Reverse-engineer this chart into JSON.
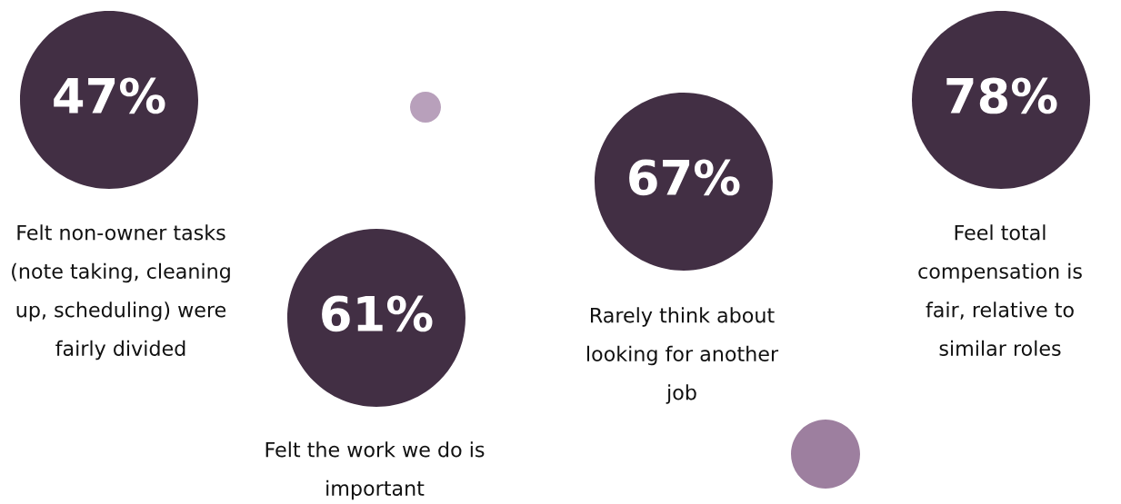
{
  "chart_data": {
    "type": "other",
    "categories": [
      "Felt non-owner tasks (note taking, cleaning up, scheduling) were fairly divided",
      "Felt the work we do is important",
      "Rarely think about looking for another job",
      "Feel total compensation is fair, relative to similar roles"
    ],
    "values": [
      47,
      61,
      67,
      78
    ],
    "value_labels": [
      "47%",
      "61%",
      "67%",
      "78%"
    ],
    "colors": [
      "#422f44",
      "#422f44",
      "#422f44",
      "#422f44"
    ]
  }
}
